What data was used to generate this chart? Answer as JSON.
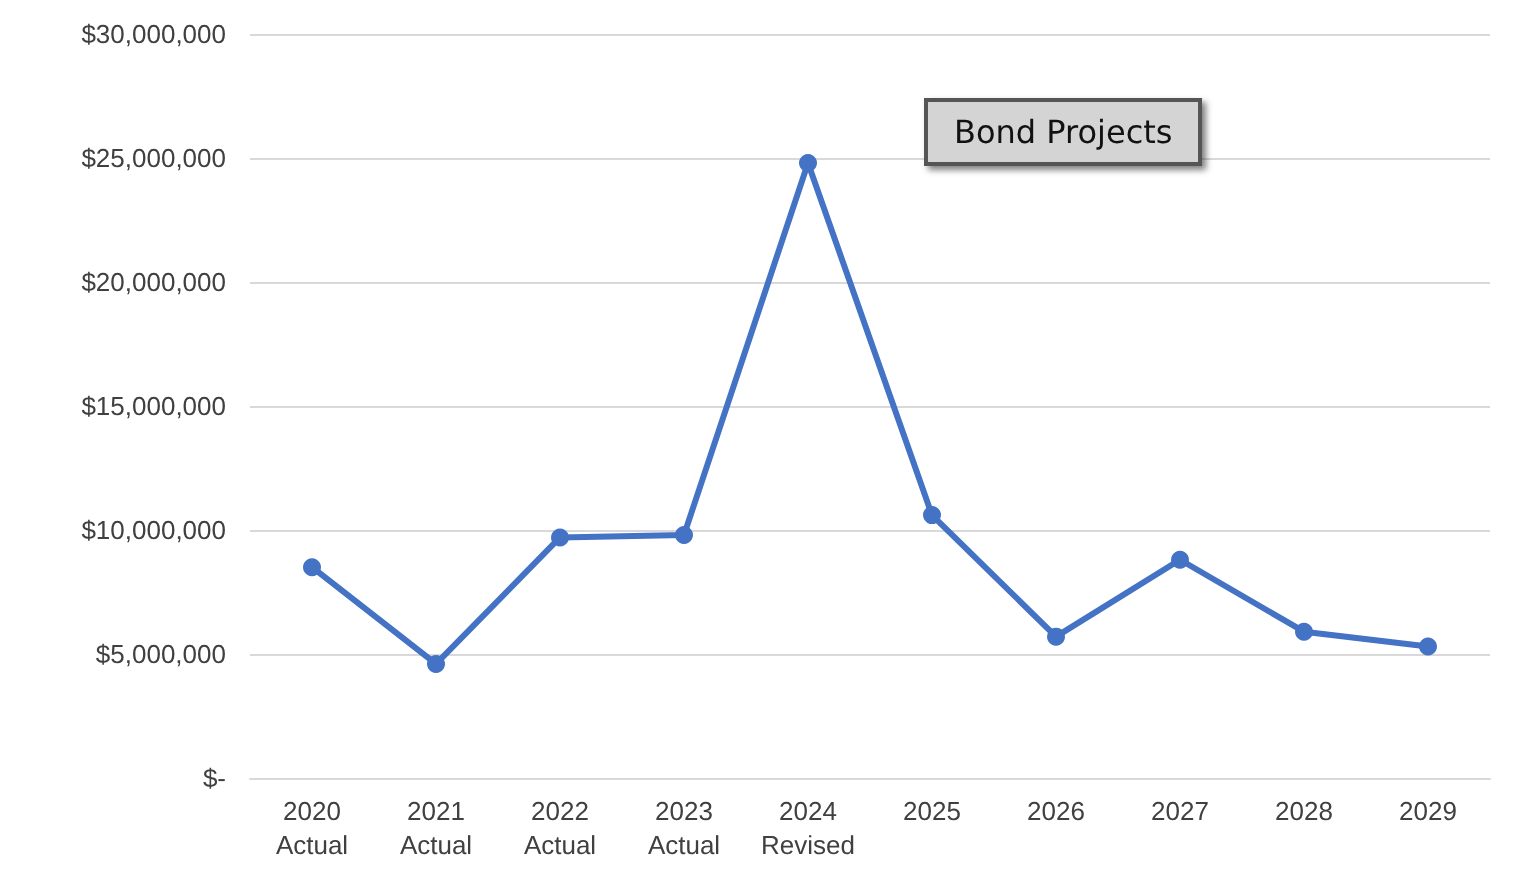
{
  "chart_data": {
    "type": "line",
    "title": "Bond Projects",
    "categories": [
      "2020 Actual",
      "2021 Actual",
      "2022 Actual",
      "2023 Actual",
      "2024 Revised",
      "2025",
      "2026",
      "2027",
      "2028",
      "2029"
    ],
    "series": [
      {
        "color": "#4472c4",
        "values": [
          8500000,
          4600000,
          9700000,
          9800000,
          24800000,
          10600000,
          5700000,
          8800000,
          5900000,
          5300000
        ]
      }
    ],
    "ylim": [
      0,
      30000000
    ],
    "yticks": [
      {
        "value": 0,
        "label": "$-"
      },
      {
        "value": 5000000,
        "label": "$5,000,000"
      },
      {
        "value": 10000000,
        "label": "$10,000,000"
      },
      {
        "value": 15000000,
        "label": "$15,000,000"
      },
      {
        "value": 20000000,
        "label": "$20,000,000"
      },
      {
        "value": 25000000,
        "label": "$25,000,000"
      },
      {
        "value": 30000000,
        "label": "$30,000,000"
      }
    ],
    "grid": "y",
    "marker": "circle",
    "line_style": "solid"
  }
}
